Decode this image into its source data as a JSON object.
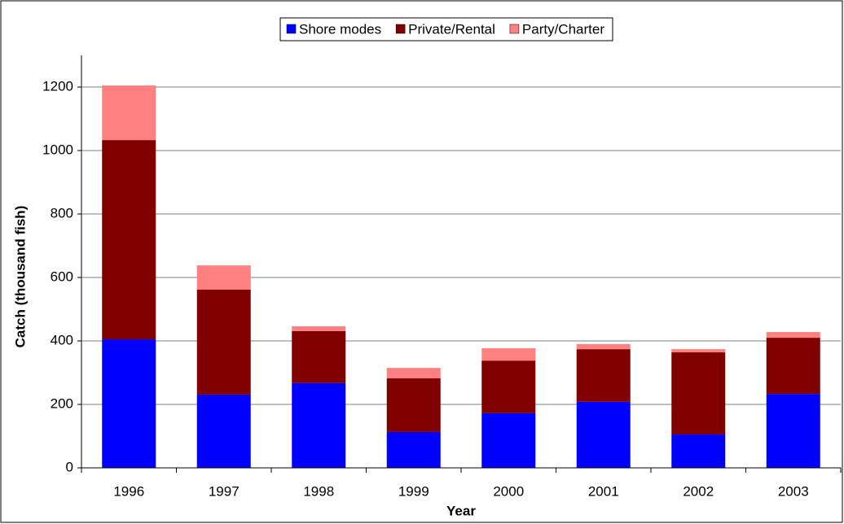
{
  "chart_data": {
    "type": "stacked_bar",
    "xlabel": "Year",
    "ylabel": "Catch (thousand fish)",
    "categories": [
      "1996",
      "1997",
      "1998",
      "1999",
      "2000",
      "2001",
      "2002",
      "2003"
    ],
    "series": [
      {
        "name": "Shore modes",
        "color": "#0000ff",
        "values": [
          405,
          231,
          267,
          113,
          172,
          208,
          105,
          233
        ]
      },
      {
        "name": "Private/Rental",
        "color": "#800000",
        "values": [
          628,
          331,
          164,
          169,
          166,
          166,
          259,
          177
        ]
      },
      {
        "name": "Party/Charter",
        "color": "#ff8080",
        "values": [
          172,
          76,
          15,
          33,
          39,
          16,
          10,
          18
        ]
      }
    ],
    "ylim": [
      0,
      1300
    ],
    "yticks": [
      0,
      200,
      400,
      600,
      800,
      1000,
      1200
    ],
    "grid": true,
    "legend": "top"
  }
}
